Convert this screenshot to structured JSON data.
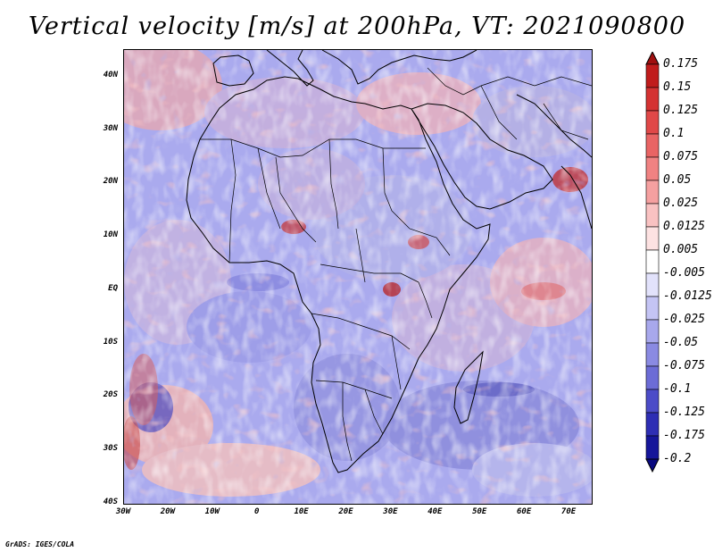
{
  "title": "Vertical velocity [m/s] at 200hPa, VT: 2021090800",
  "credit": "GrADS: IGES/COLA",
  "map": {
    "projection": "latlon",
    "lon_range": [
      -30,
      75
    ],
    "lat_range": [
      -40,
      45
    ],
    "lat_ticks": [
      {
        "value": 40,
        "label": "40N"
      },
      {
        "value": 30,
        "label": "30N"
      },
      {
        "value": 20,
        "label": "20N"
      },
      {
        "value": 10,
        "label": "10N"
      },
      {
        "value": 0,
        "label": "EQ"
      },
      {
        "value": -10,
        "label": "10S"
      },
      {
        "value": -20,
        "label": "20S"
      },
      {
        "value": -30,
        "label": "30S"
      },
      {
        "value": -40,
        "label": "40S"
      }
    ],
    "lon_ticks": [
      {
        "value": -30,
        "label": "30W"
      },
      {
        "value": -20,
        "label": "20W"
      },
      {
        "value": -10,
        "label": "10W"
      },
      {
        "value": 0,
        "label": "0"
      },
      {
        "value": 10,
        "label": "10E"
      },
      {
        "value": 20,
        "label": "20E"
      },
      {
        "value": 30,
        "label": "30E"
      },
      {
        "value": 40,
        "label": "40E"
      },
      {
        "value": 50,
        "label": "50E"
      },
      {
        "value": 60,
        "label": "60E"
      },
      {
        "value": 70,
        "label": "70E"
      }
    ]
  },
  "colorbar": {
    "levels": [
      "0.175",
      "0.15",
      "0.125",
      "0.1",
      "0.075",
      "0.05",
      "0.025",
      "0.0125",
      "0.005",
      "-0.005",
      "-0.0125",
      "-0.025",
      "-0.05",
      "-0.075",
      "-0.1",
      "-0.125",
      "-0.175",
      "-0.2"
    ],
    "colors": [
      "#a01010",
      "#c01c1c",
      "#d43232",
      "#e04848",
      "#e96464",
      "#f08282",
      "#f5a0a0",
      "#f9c2c2",
      "#fde2e2",
      "#ffffff",
      "#e2e2fb",
      "#c4c4f4",
      "#a8a8ec",
      "#8a8ae2",
      "#6c6cd6",
      "#4c4cc8",
      "#2e2eb4",
      "#16169a",
      "#0a0a80"
    ]
  }
}
